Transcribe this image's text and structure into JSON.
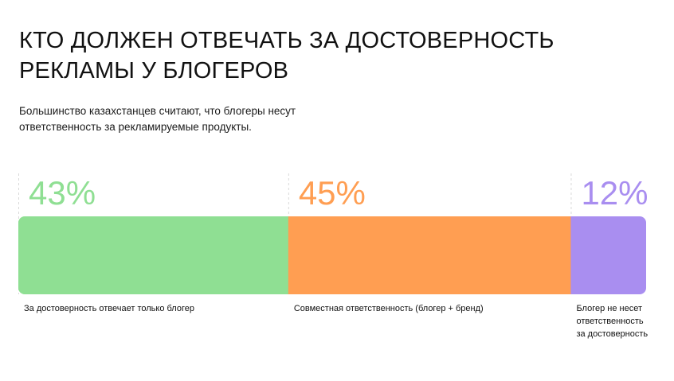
{
  "header": {
    "title_line1": "КТО ДОЛЖЕН ОТВЕЧАТЬ ЗА ДОСТОВЕРНОСТЬ",
    "title_line2": "РЕКЛАМЫ У БЛОГЕРОВ",
    "subtitle_line1": "Большинство казахстанцев считают, что блогеры несут",
    "subtitle_line2": "ответственность за рекламируемые продукты."
  },
  "chart_data": {
    "type": "bar",
    "orientation": "horizontal-stacked-100",
    "unit": "%",
    "segments": [
      {
        "value": 43,
        "label": "43%",
        "category_lines": [
          "За достоверность отвечает только блогер"
        ],
        "color": "#8fdf93",
        "label_color": "#8fdf93"
      },
      {
        "value": 45,
        "label": "45%",
        "category_lines": [
          "Совместная ответственность (блогер + бренд)"
        ],
        "color": "#ff9e52",
        "label_color": "#ff9e52"
      },
      {
        "value": 12,
        "label": "12%",
        "category_lines": [
          "Блогер не несет",
          "ответственность",
          "за достоверность"
        ],
        "color": "#a98ef0",
        "label_color": "#a98ef0"
      }
    ],
    "grid": false,
    "legend": "none"
  }
}
